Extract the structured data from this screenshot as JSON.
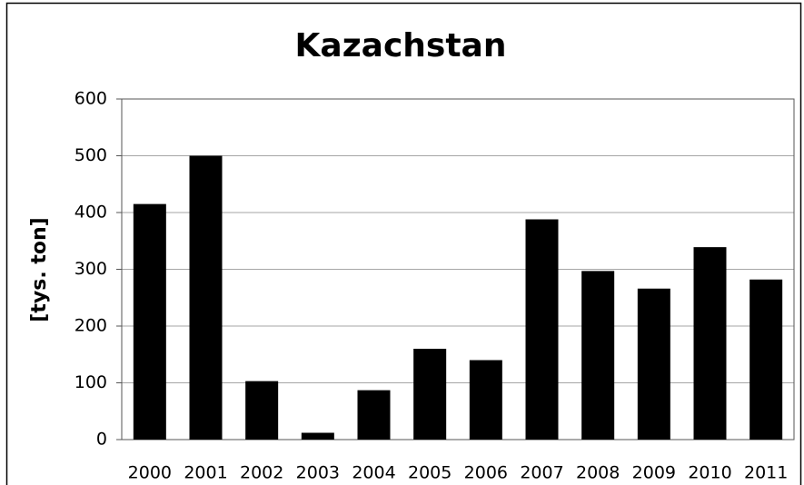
{
  "chart_data": {
    "type": "bar",
    "title": "Kazachstan",
    "y_label": "[tys. ton]",
    "categories": [
      "2000",
      "2001",
      "2002",
      "2003",
      "2004",
      "2005",
      "2006",
      "2007",
      "2008",
      "2009",
      "2010",
      "2011"
    ],
    "values": [
      415,
      500,
      103,
      12,
      87,
      160,
      140,
      388,
      297,
      266,
      339,
      282
    ],
    "color": "#000000",
    "ylim": [
      0,
      600
    ],
    "yticks": [
      0,
      100,
      200,
      300,
      400,
      500,
      600
    ],
    "grid": true
  }
}
